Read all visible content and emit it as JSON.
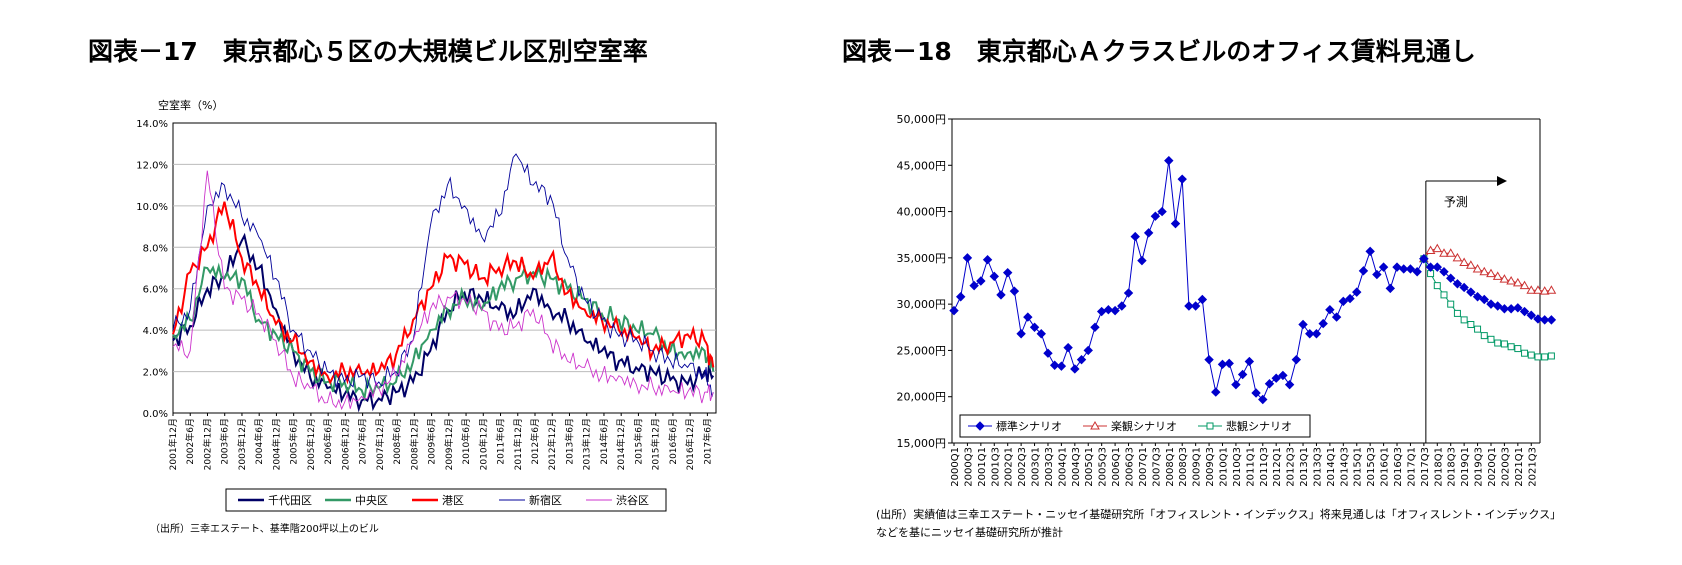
{
  "figures": {
    "left_title": "図表－17　東京都心５区の大規模ビル区別空室率",
    "right_title": "図表－18　東京都心Ａクラスビルのオフィス賃料見通し",
    "left_source": "（出所）三幸エステート、基準階200坪以上のビル",
    "right_source_line1": "(出所）実績値は三幸エステート・ニッセイ基礎研究所「オフィスレント・インデックス」将来見通しは「オフィスレント・インデックス」",
    "right_source_line2": "などを基にニッセイ基礎研究所が推計"
  },
  "colors": {
    "千代田区": "#000066",
    "中央区": "#339966",
    "港区": "#ff0000",
    "新宿区": "#000099",
    "渋谷区": "#cc33cc",
    "標準シナリオ": "#0000cc",
    "楽観シナリオ": "#cc3333",
    "悲観シナリオ": "#009966"
  },
  "chart_data": [
    {
      "type": "line",
      "ylabel": "空室率（%）",
      "ylim": [
        0,
        14
      ],
      "yticks": [
        "0.0%",
        "2.0%",
        "4.0%",
        "6.0%",
        "8.0%",
        "10.0%",
        "12.0%",
        "14.0%"
      ],
      "xtick_labels": [
        "2001年12月",
        "2002年6月",
        "2002年12月",
        "2003年6月",
        "2003年12月",
        "2004年6月",
        "2004年12月",
        "2005年6月",
        "2005年12月",
        "2006年6月",
        "2006年12月",
        "2007年6月",
        "2007年12月",
        "2008年6月",
        "2008年12月",
        "2009年6月",
        "2009年12月",
        "2010年6月",
        "2010年12月",
        "2011年6月",
        "2011年12月",
        "2012年6月",
        "2012年12月",
        "2013年6月",
        "2013年12月",
        "2014年6月",
        "2014年12月",
        "2015年6月",
        "2015年12月",
        "2016年6月",
        "2016年12月",
        "2017年6月"
      ],
      "grid": true,
      "legend_position": "bottom",
      "x_semiannual": [
        2001.92,
        2002.42,
        2002.92,
        2003.42,
        2003.92,
        2004.42,
        2004.92,
        2005.42,
        2005.92,
        2006.42,
        2006.92,
        2007.42,
        2007.92,
        2008.42,
        2008.92,
        2009.42,
        2009.92,
        2010.42,
        2010.92,
        2011.42,
        2011.92,
        2012.42,
        2012.92,
        2013.42,
        2013.92,
        2014.42,
        2014.92,
        2015.42,
        2015.92,
        2016.42,
        2016.92,
        2017.42,
        2017.67
      ],
      "series": [
        {
          "name": "千代田区",
          "values": [
            3.5,
            4.2,
            6.0,
            6.5,
            8.3,
            7.0,
            5.0,
            3.0,
            1.7,
            1.2,
            0.9,
            0.6,
            0.7,
            1.0,
            1.5,
            3.0,
            5.0,
            5.8,
            5.5,
            5.0,
            4.8,
            6.0,
            5.0,
            4.5,
            3.5,
            3.0,
            2.5,
            2.2,
            2.0,
            1.6,
            1.4,
            2.0,
            1.8
          ]
        },
        {
          "name": "中央区",
          "values": [
            3.8,
            4.5,
            7.0,
            6.5,
            6.5,
            4.5,
            3.8,
            3.0,
            2.0,
            1.5,
            1.5,
            1.1,
            1.2,
            1.5,
            2.5,
            4.0,
            5.0,
            5.5,
            5.0,
            6.0,
            6.5,
            6.8,
            6.5,
            6.0,
            5.5,
            4.8,
            4.5,
            4.0,
            3.8,
            3.0,
            2.9,
            3.0,
            2.0
          ]
        },
        {
          "name": "港区",
          "values": [
            3.8,
            6.8,
            8.0,
            10.2,
            7.5,
            6.0,
            4.3,
            3.5,
            2.5,
            1.8,
            2.0,
            1.9,
            2.0,
            2.8,
            4.5,
            6.0,
            7.5,
            7.2,
            6.5,
            7.0,
            7.3,
            6.5,
            7.5,
            5.8,
            5.0,
            4.5,
            4.0,
            3.6,
            3.0,
            3.4,
            3.8,
            3.5,
            2.2
          ]
        },
        {
          "name": "新宿区",
          "values": [
            4.0,
            5.0,
            10.0,
            11.0,
            9.5,
            8.5,
            6.5,
            4.0,
            3.0,
            2.0,
            1.5,
            1.8,
            1.5,
            2.0,
            3.5,
            9.0,
            11.0,
            10.0,
            8.5,
            9.5,
            12.5,
            11.0,
            10.5,
            7.5,
            5.5,
            4.5,
            3.7,
            3.6,
            3.0,
            2.5,
            2.2,
            1.8,
            1.0
          ]
        },
        {
          "name": "渋谷区",
          "values": [
            3.2,
            3.0,
            11.7,
            6.0,
            5.5,
            4.8,
            3.5,
            1.7,
            1.2,
            0.5,
            0.5,
            0.8,
            1.2,
            1.8,
            3.5,
            5.0,
            5.6,
            5.5,
            5.0,
            4.0,
            4.2,
            5.0,
            3.5,
            2.5,
            2.2,
            1.8,
            1.8,
            1.4,
            1.2,
            1.0,
            1.0,
            1.0,
            1.0
          ]
        }
      ]
    },
    {
      "type": "line",
      "ylim": [
        15000,
        50000
      ],
      "yticks": [
        "15,000円",
        "20,000円",
        "25,000円",
        "30,000円",
        "35,000円",
        "40,000円",
        "45,000円",
        "50,000円"
      ],
      "xtick_labels": [
        "2000Q1",
        "2000Q3",
        "2001Q1",
        "2001Q3",
        "2002Q1",
        "2002Q3",
        "2003Q1",
        "2003Q3",
        "2004Q1",
        "2004Q3",
        "2005Q1",
        "2005Q3",
        "2006Q1",
        "2006Q3",
        "2007Q1",
        "2007Q3",
        "2008Q1",
        "2008Q3",
        "2009Q1",
        "2009Q3",
        "2010Q1",
        "2010Q3",
        "2011Q1",
        "2011Q3",
        "2012Q1",
        "2012Q3",
        "2013Q1",
        "2013Q3",
        "2014Q1",
        "2014Q3",
        "2015Q1",
        "2015Q3",
        "2016Q1",
        "2016Q3",
        "2017Q1",
        "2017Q3",
        "2018Q1",
        "2018Q3",
        "2019Q1",
        "2019Q3",
        "2020Q1",
        "2020Q3",
        "2021Q1",
        "2021Q3"
      ],
      "annotation": "予測",
      "forecast_start": "2017Q3",
      "grid": false,
      "legend_position": "bottom-left",
      "actual_start": "2000Q1",
      "forecast_x_start": "2017Q2",
      "series": [
        {
          "name": "標準シナリオ",
          "actual": [
            29300,
            30800,
            35000,
            32000,
            32500,
            34800,
            33000,
            31000,
            33400,
            31400,
            26800,
            28600,
            27500,
            26800,
            24700,
            23400,
            23300,
            25300,
            23000,
            24000,
            25000,
            27500,
            29200,
            29400,
            29300,
            29800,
            31200,
            37300,
            34700,
            37700,
            39500,
            40000,
            45500,
            38700,
            43500,
            29800,
            29800,
            30500,
            24000,
            20500,
            23500,
            23600,
            21300,
            22400,
            23800,
            20400,
            19700,
            21400,
            22000,
            22300,
            21300,
            24000,
            27800,
            26800,
            26800,
            27900,
            29400,
            28600,
            30300,
            30600,
            31300,
            33600,
            35700,
            33200,
            34000,
            31700,
            34000,
            33800,
            33800,
            33500,
            34900
          ],
          "forecast": [
            34900,
            34000,
            34000,
            33500,
            32800,
            32200,
            31800,
            31300,
            30800,
            30500,
            30000,
            29800,
            29500,
            29500,
            29600,
            29200,
            28800,
            28400,
            28300,
            28300
          ]
        },
        {
          "name": "楽観シナリオ",
          "forecast": [
            34900,
            35800,
            36000,
            35500,
            35500,
            35000,
            34500,
            34200,
            33800,
            33500,
            33300,
            33000,
            32700,
            32500,
            32300,
            32000,
            31500,
            31500,
            31400,
            31500
          ]
        },
        {
          "name": "悲観シナリオ",
          "forecast": [
            34900,
            33300,
            32000,
            31000,
            30000,
            29000,
            28300,
            27800,
            27300,
            26600,
            26200,
            25800,
            25700,
            25400,
            25200,
            24700,
            24500,
            24300,
            24300,
            24400
          ]
        }
      ]
    }
  ]
}
